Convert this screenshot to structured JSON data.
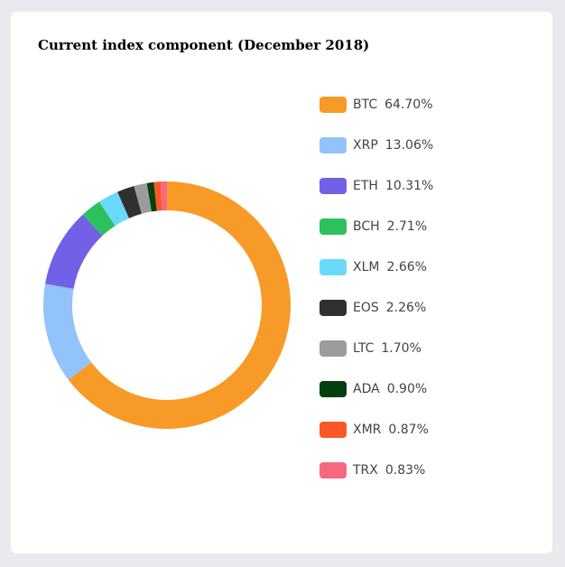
{
  "chart_data": {
    "type": "pie",
    "title": "Current index component (December 2018)",
    "categories": [
      "BTC",
      "XRP",
      "ETH",
      "BCH",
      "XLM",
      "EOS",
      "LTC",
      "ADA",
      "XMR",
      "TRX"
    ],
    "values": [
      64.7,
      13.06,
      10.31,
      2.71,
      2.66,
      2.26,
      1.7,
      0.9,
      0.87,
      0.83
    ],
    "value_labels": [
      "64.70%",
      "13.06%",
      "10.31%",
      "2.71%",
      "2.66%",
      "2.26%",
      "1.70%",
      "0.90%",
      "0.87%",
      "0.83%"
    ],
    "colors": [
      "#f89a28",
      "#93c3fb",
      "#7260e6",
      "#2cc15d",
      "#6bd9fc",
      "#303030",
      "#9c9c9c",
      "#04400e",
      "#fa5728",
      "#f7697f"
    ],
    "donut": true,
    "legend_position": "right"
  }
}
